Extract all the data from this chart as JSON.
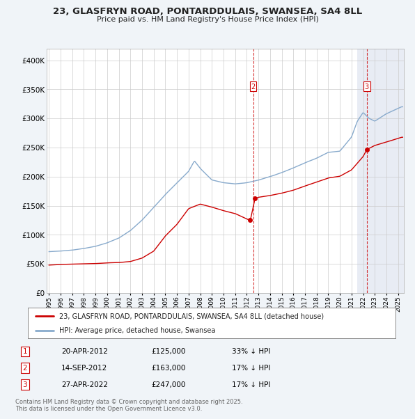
{
  "title_line1": "23, GLASFRYN ROAD, PONTARDDULAIS, SWANSEA, SA4 8LL",
  "title_line2": "Price paid vs. HM Land Registry's House Price Index (HPI)",
  "legend_entry1": "23, GLASFRYN ROAD, PONTARDDULAIS, SWANSEA, SA4 8LL (detached house)",
  "legend_entry2": "HPI: Average price, detached house, Swansea",
  "sale_color": "#cc0000",
  "hpi_color": "#88aacc",
  "transactions": [
    {
      "label": "1",
      "date_num": 2012.3,
      "price": 125000,
      "note": "33% ↓ HPI",
      "date_str": "20-APR-2012"
    },
    {
      "label": "2",
      "date_num": 2012.71,
      "price": 163000,
      "note": "17% ↓ HPI",
      "date_str": "14-SEP-2012"
    },
    {
      "label": "3",
      "date_num": 2022.32,
      "price": 247000,
      "note": "17% ↓ HPI",
      "date_str": "27-APR-2022"
    }
  ],
  "vline_x1": 2012.55,
  "vline_x2": 2022.32,
  "ylim": [
    0,
    420000
  ],
  "xlim": [
    1994.8,
    2025.5
  ],
  "yticks": [
    0,
    50000,
    100000,
    150000,
    200000,
    250000,
    300000,
    350000,
    400000
  ],
  "ytick_labels": [
    "£0",
    "£50K",
    "£100K",
    "£150K",
    "£200K",
    "£250K",
    "£300K",
    "£350K",
    "£400K"
  ],
  "xticks": [
    1995,
    1996,
    1997,
    1998,
    1999,
    2000,
    2001,
    2002,
    2003,
    2004,
    2005,
    2006,
    2007,
    2008,
    2009,
    2010,
    2011,
    2012,
    2013,
    2014,
    2015,
    2016,
    2017,
    2018,
    2019,
    2020,
    2021,
    2022,
    2023,
    2024,
    2025
  ],
  "footer": "Contains HM Land Registry data © Crown copyright and database right 2025.\nThis data is licensed under the Open Government Licence v3.0.",
  "background_color": "#f0f4f8",
  "plot_bg_color": "#ffffff",
  "plot_bg_right_color": "#e8ecf4",
  "grid_color": "#cccccc",
  "table_rows": [
    {
      "label": "1",
      "date": "20-APR-2012",
      "price": "£125,000",
      "note": "33% ↓ HPI"
    },
    {
      "label": "2",
      "date": "14-SEP-2012",
      "price": "£163,000",
      "note": "17% ↓ HPI"
    },
    {
      "label": "3",
      "date": "27-APR-2022",
      "price": "£247,000",
      "note": "17% ↓ HPI"
    }
  ]
}
